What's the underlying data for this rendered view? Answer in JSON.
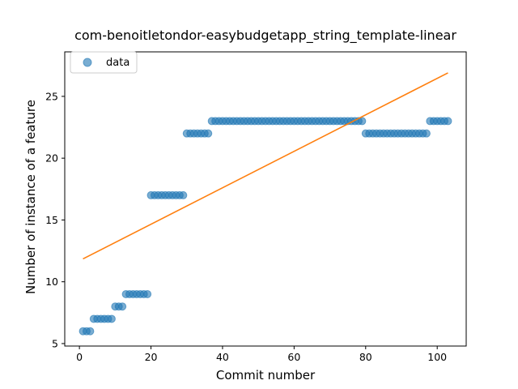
{
  "chart_data": {
    "type": "scatter",
    "title": "com-benoitletondor-easybudgetapp_string_template-linear",
    "xlabel": "Commit number",
    "ylabel": "Number of instance of a feature",
    "xlim": [
      -4.1,
      108.1
    ],
    "ylim": [
      4.8,
      28.6
    ],
    "xticks": [
      0,
      20,
      40,
      60,
      80,
      100
    ],
    "yticks": [
      5,
      10,
      15,
      20,
      25
    ],
    "grid": false,
    "legend": {
      "placement": "top-left",
      "entries": [
        "data"
      ]
    },
    "series": [
      {
        "name": "data",
        "kind": "points",
        "color": "#1f77b4",
        "x": [
          1,
          2,
          3,
          4,
          5,
          6,
          7,
          8,
          9,
          10,
          11,
          12,
          13,
          14,
          15,
          16,
          17,
          18,
          19,
          20,
          21,
          22,
          23,
          24,
          25,
          26,
          27,
          28,
          29,
          30,
          31,
          32,
          33,
          34,
          35,
          36,
          37,
          38,
          39,
          40,
          41,
          42,
          43,
          44,
          45,
          46,
          47,
          48,
          49,
          50,
          51,
          52,
          53,
          54,
          55,
          56,
          57,
          58,
          59,
          60,
          61,
          62,
          63,
          64,
          65,
          66,
          67,
          68,
          69,
          70,
          71,
          72,
          73,
          74,
          75,
          76,
          77,
          78,
          79,
          80,
          81,
          82,
          83,
          84,
          85,
          86,
          87,
          88,
          89,
          90,
          91,
          92,
          93,
          94,
          95,
          96,
          97,
          98,
          99,
          100,
          101,
          102,
          103
        ],
        "y": [
          6,
          6,
          6,
          7,
          7,
          7,
          7,
          7,
          7,
          8,
          8,
          8,
          9,
          9,
          9,
          9,
          9,
          9,
          9,
          17,
          17,
          17,
          17,
          17,
          17,
          17,
          17,
          17,
          17,
          22,
          22,
          22,
          22,
          22,
          22,
          22,
          23,
          23,
          23,
          23,
          23,
          23,
          23,
          23,
          23,
          23,
          23,
          23,
          23,
          23,
          23,
          23,
          23,
          23,
          23,
          23,
          23,
          23,
          23,
          23,
          23,
          23,
          23,
          23,
          23,
          23,
          23,
          23,
          23,
          23,
          23,
          23,
          23,
          23,
          23,
          23,
          23,
          23,
          23,
          22,
          22,
          22,
          22,
          22,
          22,
          22,
          22,
          22,
          22,
          22,
          22,
          22,
          22,
          22,
          22,
          22,
          22,
          23,
          23,
          23,
          23,
          23,
          23
        ]
      },
      {
        "kind": "line",
        "color": "#ff7f0e",
        "x": [
          1,
          103
        ],
        "y": [
          11.85,
          26.9
        ]
      }
    ]
  }
}
